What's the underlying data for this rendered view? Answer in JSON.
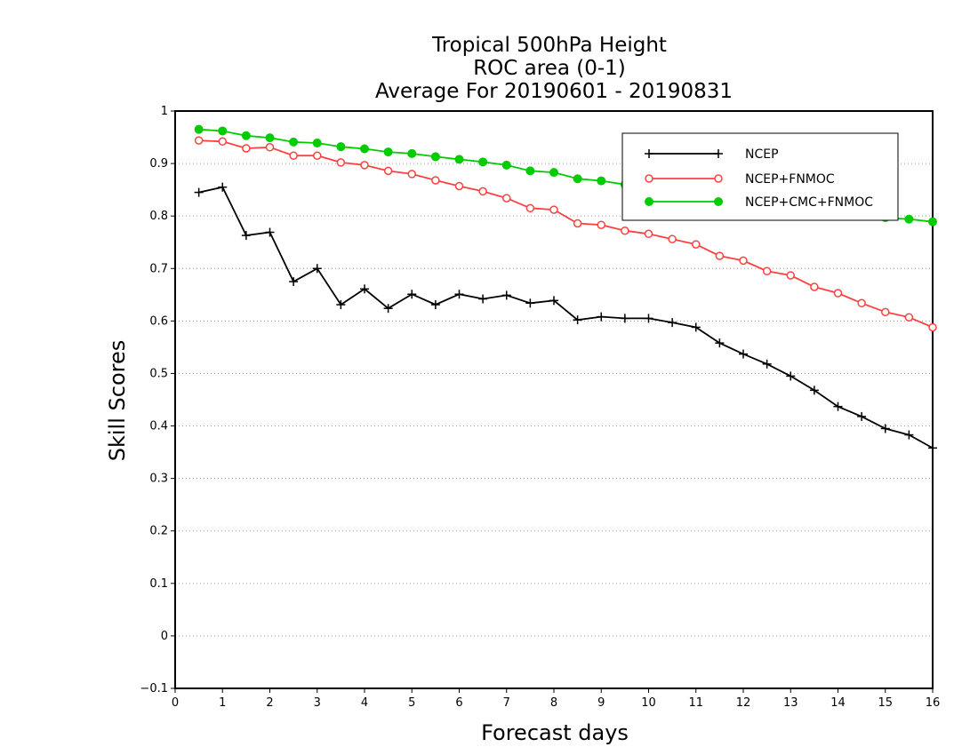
{
  "chart_data": {
    "type": "line",
    "title_lines": [
      "Tropical 500hPa Height",
      "ROC area (0-1)",
      "Average For 20190601 - 20190831"
    ],
    "xlabel": "Forecast days",
    "ylabel": "Skill Scores",
    "xlim": [
      0,
      16
    ],
    "ylim": [
      -0.1,
      1
    ],
    "x_ticks": [
      "0",
      "1",
      "2",
      "3",
      "4",
      "5",
      "6",
      "7",
      "8",
      "9",
      "10",
      "11",
      "12",
      "13",
      "14",
      "15",
      "16"
    ],
    "y_ticks": [
      "−0.1",
      "0",
      "0.1",
      "0.2",
      "0.3",
      "0.4",
      "0.5",
      "0.6",
      "0.7",
      "0.8",
      "0.9",
      "1"
    ],
    "grid": "horizontal dotted",
    "legend_position": "top-right",
    "x": [
      0.5,
      1,
      1.5,
      2,
      2.5,
      3,
      3.5,
      4,
      4.5,
      5,
      5.5,
      6,
      6.5,
      7,
      7.5,
      8,
      8.5,
      9,
      9.5,
      10,
      10.5,
      11,
      11.5,
      12,
      12.5,
      13,
      13.5,
      14,
      14.5,
      15,
      15.5,
      16
    ],
    "series": [
      {
        "name": "NCEP",
        "color": "#000000",
        "marker": "plus",
        "values": [
          0.845,
          0.855,
          0.763,
          0.769,
          0.675,
          0.7,
          0.631,
          0.661,
          0.624,
          0.651,
          0.631,
          0.651,
          0.642,
          0.649,
          0.634,
          0.639,
          0.602,
          0.608,
          0.605,
          0.605,
          0.597,
          0.588,
          0.558,
          0.537,
          0.518,
          0.495,
          0.468,
          0.437,
          0.418,
          0.395,
          0.383,
          0.358
        ]
      },
      {
        "name": "NCEP+FNMOC",
        "color": "#ff4040",
        "marker": "open-circle",
        "values": [
          0.944,
          0.942,
          0.929,
          0.931,
          0.915,
          0.915,
          0.902,
          0.897,
          0.886,
          0.88,
          0.868,
          0.857,
          0.847,
          0.834,
          0.815,
          0.812,
          0.786,
          0.783,
          0.772,
          0.766,
          0.756,
          0.746,
          0.724,
          0.715,
          0.695,
          0.687,
          0.665,
          0.653,
          0.634,
          0.617,
          0.607,
          0.588
        ]
      },
      {
        "name": "NCEP+CMC+FNMOC",
        "color": "#00cc00",
        "marker": "filled-circle",
        "values": [
          0.965,
          0.962,
          0.953,
          0.949,
          0.941,
          0.939,
          0.932,
          0.928,
          0.922,
          0.919,
          0.913,
          0.908,
          0.903,
          0.897,
          0.886,
          0.883,
          0.871,
          0.867,
          0.86,
          0.855,
          0.849,
          0.844,
          0.836,
          0.83,
          0.823,
          0.818,
          0.812,
          0.807,
          0.801,
          0.797,
          0.794,
          0.789
        ]
      }
    ]
  }
}
